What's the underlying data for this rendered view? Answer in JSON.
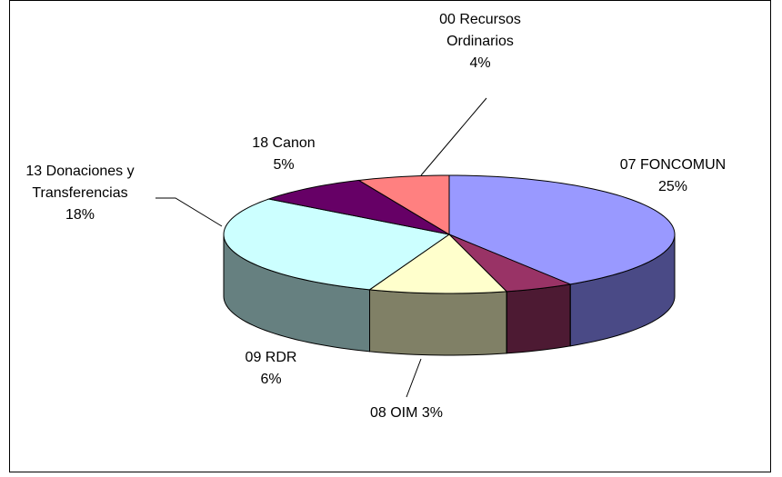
{
  "chart_data": {
    "type": "pie",
    "style": "3d-exploded",
    "slices": [
      {
        "label": [
          "07 FONCOMUN",
          "25%"
        ],
        "value": 25,
        "top_color": "#9999ff",
        "side_color": "#4a4a86"
      },
      {
        "label": [
          "08 OIM 3%"
        ],
        "value": 3,
        "top_color": "#993366",
        "side_color": "#4d1a33"
      },
      {
        "label": [
          "09 RDR",
          "6%"
        ],
        "value": 6,
        "top_color": "#ffffcc",
        "side_color": "#808066"
      },
      {
        "label": [
          "13 Donaciones y",
          "Transferencias",
          "18%"
        ],
        "value": 18,
        "top_color": "#ccffff",
        "side_color": "#668080"
      },
      {
        "label": [
          "18 Canon",
          "5%"
        ],
        "value": 5,
        "top_color": "#660066",
        "side_color": "#330033"
      },
      {
        "label": [
          "00 Recursos",
          "Ordinarios",
          "4%"
        ],
        "value": 4,
        "top_color": "#ff8080",
        "side_color": "#804040"
      }
    ],
    "legend": "none"
  }
}
